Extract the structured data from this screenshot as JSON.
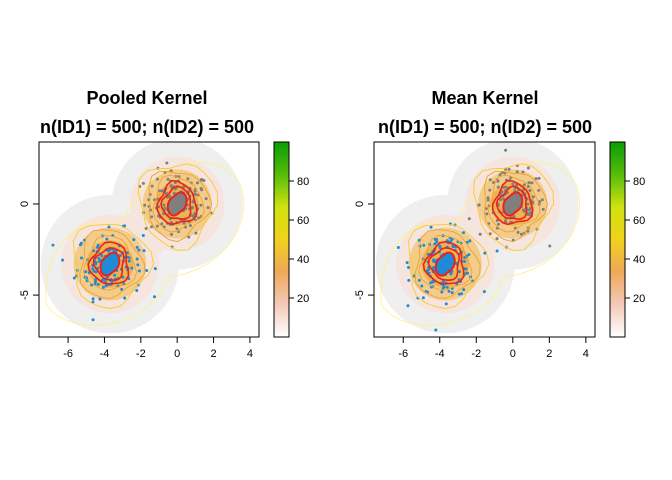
{
  "chart_data": [
    {
      "type": "heatmap",
      "title": "Pooled Kernel",
      "subtitle": "n(ID1) = 500; n(ID2) = 500",
      "xlabel": "",
      "ylabel": "",
      "xlim": [
        -7.6,
        4.5
      ],
      "ylim": [
        -7.3,
        3.4
      ],
      "x_ticks": [
        -6,
        -4,
        -2,
        0,
        2,
        4
      ],
      "y_ticks": [
        -5,
        0
      ],
      "grid": false,
      "series": [
        {
          "name": "",
          "color": "#7f7f7f",
          "center": [
            0,
            0
          ],
          "sd": [
            1.0,
            1.0
          ],
          "n": 500
        },
        {
          "name": "",
          "color": "#1f8bd6",
          "center": [
            -3.7,
            -3.3
          ],
          "sd": [
            1.0,
            1.0
          ],
          "n": 500
        }
      ],
      "colorbar": {
        "range": [
          0,
          100
        ],
        "ticks": [
          20,
          40,
          60,
          80
        ],
        "colors": [
          "#ffffff",
          "#f2c9b8",
          "#efa85a",
          "#f0d21c",
          "#cfe20e",
          "#56bd0b",
          "#0a9c05"
        ]
      },
      "contour_colors": [
        "#e8231f",
        "#f0a02c",
        "#f5cd2a",
        "#fff27a"
      ]
    },
    {
      "type": "heatmap",
      "title": "Mean Kernel",
      "subtitle": "n(ID1) = 500; n(ID2) = 500",
      "xlabel": "",
      "ylabel": "",
      "xlim": [
        -7.6,
        4.5
      ],
      "ylim": [
        -7.3,
        3.4
      ],
      "x_ticks": [
        -6,
        -4,
        -2,
        0,
        2,
        4
      ],
      "y_ticks": [
        -5,
        0
      ],
      "grid": false,
      "series": [
        {
          "name": "",
          "color": "#7f7f7f",
          "center": [
            0,
            0
          ],
          "sd": [
            1.0,
            1.0
          ],
          "n": 500
        },
        {
          "name": "",
          "color": "#1f8bd6",
          "center": [
            -3.7,
            -3.3
          ],
          "sd": [
            1.0,
            1.0
          ],
          "n": 500
        }
      ],
      "colorbar": {
        "range": [
          0,
          100
        ],
        "ticks": [
          20,
          40,
          60,
          80
        ],
        "colors": [
          "#ffffff",
          "#f2c9b8",
          "#efa85a",
          "#f0d21c",
          "#cfe20e",
          "#56bd0b",
          "#0a9c05"
        ]
      },
      "contour_colors": [
        "#e8231f",
        "#f0a02c",
        "#f5cd2a",
        "#fff27a"
      ]
    }
  ]
}
